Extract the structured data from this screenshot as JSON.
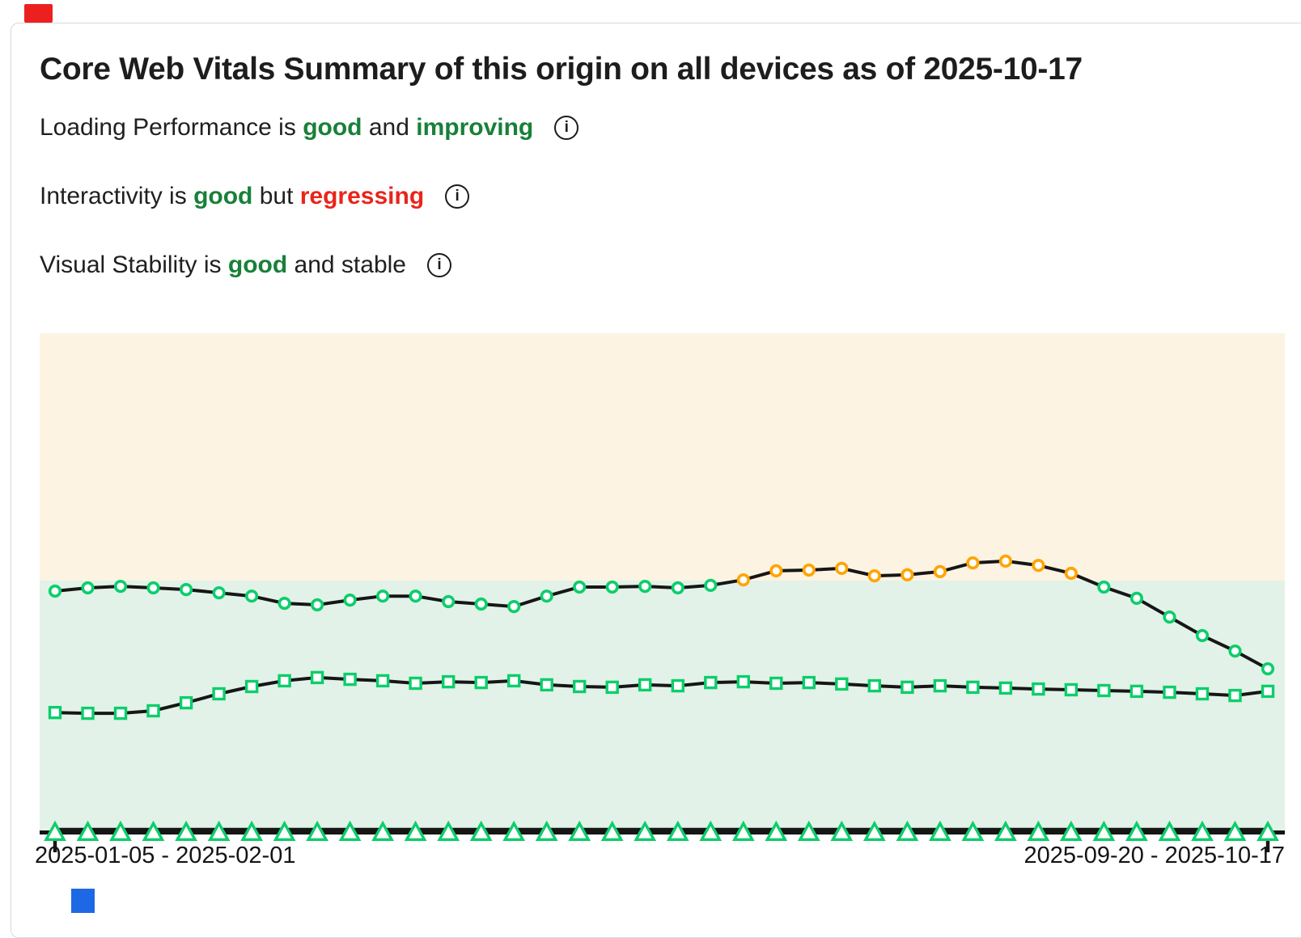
{
  "header": {
    "title": "Core Web Vitals Summary of this origin on all devices as of 2025-10-17"
  },
  "status_lines": [
    {
      "name": "loading-performance",
      "segments": [
        {
          "text": "Loading Performance is ",
          "style": "plain"
        },
        {
          "text": "good",
          "style": "green"
        },
        {
          "text": " and ",
          "style": "plain"
        },
        {
          "text": "improving",
          "style": "green"
        }
      ]
    },
    {
      "name": "interactivity",
      "segments": [
        {
          "text": "Interactivity is ",
          "style": "plain"
        },
        {
          "text": "good",
          "style": "green"
        },
        {
          "text": " but ",
          "style": "plain"
        },
        {
          "text": "regressing",
          "style": "red"
        }
      ]
    },
    {
      "name": "visual-stability",
      "segments": [
        {
          "text": "Visual Stability is ",
          "style": "plain"
        },
        {
          "text": "good",
          "style": "green"
        },
        {
          "text": " and stable",
          "style": "plain"
        }
      ]
    }
  ],
  "colors": {
    "good_green_text": "#188038",
    "regressing_red_text": "#ea241a",
    "marker_green": "#0cce6b",
    "marker_orange": "#ffa400",
    "zone_needs_improvement": "#fcf3e3",
    "zone_good": "#e2f2e8",
    "line_black": "#161616",
    "top_left_mark": "#ed2020",
    "bottom_left_mark": "#1e68e6"
  },
  "chart_data": {
    "type": "line",
    "title": "Core Web Vitals trend (weekly 28-day windows)",
    "x_axis": {
      "num_points": 38,
      "first_label": "2025-01-05 - 2025-02-01",
      "last_label": "2025-09-20 - 2025-10-17"
    },
    "y_axis": {
      "scale_note": "values are relative to the good/needs-improvement threshold line; 1.0 = threshold boundary, 0 = x-axis baseline",
      "ylim": [
        0,
        1.985
      ],
      "grid": false,
      "legend": "none"
    },
    "zones": [
      {
        "label": "needs-improvement",
        "color": "#fcf3e3"
      },
      {
        "label": "good",
        "color": "#e2f2e8"
      }
    ],
    "series": [
      {
        "name": "loading",
        "marker": "circle",
        "threshold_relative": 1.0,
        "values": [
          0.958,
          0.971,
          0.977,
          0.971,
          0.964,
          0.951,
          0.938,
          0.909,
          0.903,
          0.922,
          0.938,
          0.938,
          0.916,
          0.906,
          0.896,
          0.938,
          0.974,
          0.974,
          0.977,
          0.971,
          0.981,
          1.003,
          1.039,
          1.042,
          1.049,
          1.019,
          1.023,
          1.036,
          1.071,
          1.078,
          1.061,
          1.029,
          0.974,
          0.929,
          0.854,
          0.78,
          0.718,
          0.647
        ]
      },
      {
        "name": "interactivity",
        "marker": "square",
        "threshold_relative": 1.0,
        "values": [
          0.472,
          0.469,
          0.469,
          0.479,
          0.511,
          0.547,
          0.576,
          0.599,
          0.612,
          0.605,
          0.599,
          0.589,
          0.595,
          0.592,
          0.599,
          0.583,
          0.576,
          0.573,
          0.583,
          0.579,
          0.592,
          0.595,
          0.589,
          0.592,
          0.586,
          0.579,
          0.573,
          0.579,
          0.573,
          0.57,
          0.566,
          0.563,
          0.56,
          0.557,
          0.553,
          0.547,
          0.54,
          0.557
        ]
      },
      {
        "name": "visual-stability",
        "marker": "triangle",
        "threshold_relative": 1.0,
        "values": [
          0.004,
          0.004,
          0.004,
          0.004,
          0.004,
          0.004,
          0.004,
          0.004,
          0.004,
          0.004,
          0.004,
          0.004,
          0.004,
          0.004,
          0.004,
          0.004,
          0.004,
          0.004,
          0.004,
          0.004,
          0.004,
          0.004,
          0.004,
          0.004,
          0.004,
          0.004,
          0.004,
          0.004,
          0.004,
          0.004,
          0.004,
          0.004,
          0.004,
          0.004,
          0.004,
          0.004,
          0.004,
          0.004
        ]
      }
    ]
  }
}
